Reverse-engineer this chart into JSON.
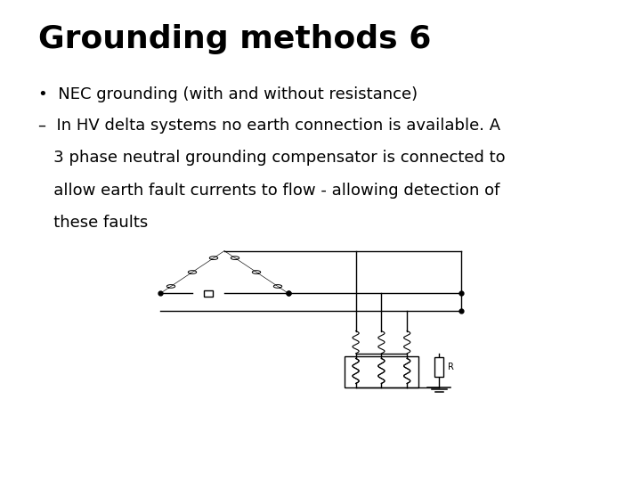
{
  "title": "Grounding methods 6",
  "title_fontsize": 26,
  "bullet_text": "NEC grounding (with and without resistance)",
  "sub_bullet_line1": "–  In HV delta systems no earth connection is available. A",
  "sub_bullet_line2": "   3 phase neutral grounding compensator is connected to",
  "sub_bullet_line3": "   allow earth fault currents to flow - allowing detection of",
  "sub_bullet_line4": "   these faults",
  "text_fontsize": 13,
  "bg_color": "#ffffff",
  "text_color": "#000000",
  "diagram_color": "#000000"
}
